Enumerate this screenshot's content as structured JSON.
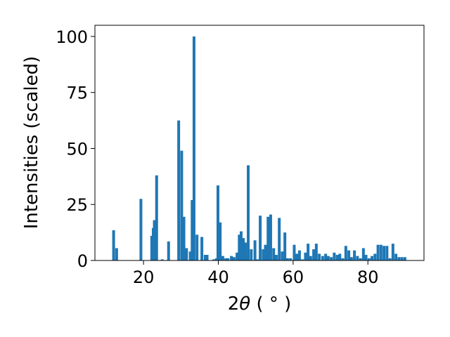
{
  "chart_data": {
    "type": "bar",
    "xlabel_main": "2",
    "xlabel_symbol": "θ",
    "xlabel_unit": " ( ° )",
    "ylabel": "Intensities (scaled)",
    "xlim": [
      7,
      95
    ],
    "ylim": [
      0,
      105
    ],
    "x_ticks": [
      20,
      40,
      60,
      80
    ],
    "y_ticks": [
      0,
      25,
      50,
      75,
      100
    ],
    "bar_width": 0.75,
    "color": "#1f77b4",
    "grid": false,
    "x": [
      12.0,
      12.8,
      19.3,
      22.2,
      22.6,
      22.9,
      23.5,
      25.0,
      26.7,
      29.4,
      30.2,
      30.8,
      31.5,
      32.5,
      33.0,
      33.5,
      34.3,
      35.6,
      36.5,
      37.0,
      38.8,
      39.5,
      39.9,
      40.5,
      41.2,
      42.0,
      42.6,
      43.5,
      44.2,
      45.0,
      45.6,
      46.1,
      46.7,
      47.3,
      48.0,
      48.8,
      49.8,
      50.5,
      51.2,
      52.0,
      52.6,
      53.3,
      54.0,
      54.8,
      55.5,
      56.3,
      57.1,
      57.8,
      58.5,
      59.3,
      60.3,
      61.0,
      61.7,
      62.5,
      63.3,
      64.0,
      64.7,
      65.5,
      66.2,
      67.0,
      67.9,
      68.7,
      69.4,
      70.2,
      71.0,
      71.8,
      72.5,
      73.3,
      74.1,
      74.9,
      75.6,
      76.4,
      77.2,
      78.0,
      78.8,
      79.5,
      80.3,
      81.1,
      81.9,
      82.7,
      83.5,
      84.3,
      85.1,
      85.9,
      86.7,
      87.5,
      88.3,
      89.1,
      89.9
    ],
    "values": [
      13.5,
      5.5,
      27.5,
      11.0,
      14.5,
      18.0,
      38.0,
      0.5,
      8.5,
      62.5,
      49.0,
      19.5,
      5.5,
      4.0,
      27.0,
      100.0,
      11.5,
      10.5,
      2.5,
      2.5,
      0.5,
      1.0,
      33.5,
      17.0,
      2.0,
      1.0,
      1.0,
      2.0,
      1.5,
      3.5,
      11.5,
      13.0,
      10.0,
      8.0,
      42.5,
      5.0,
      9.0,
      0.5,
      20.0,
      5.0,
      7.0,
      19.5,
      20.5,
      5.5,
      2.5,
      19.0,
      4.0,
      12.5,
      1.0,
      1.0,
      7.0,
      3.0,
      4.5,
      0.5,
      3.5,
      7.5,
      2.0,
      5.0,
      7.5,
      3.0,
      2.0,
      3.0,
      2.0,
      1.5,
      3.5,
      2.5,
      3.0,
      1.0,
      6.5,
      4.5,
      1.5,
      4.5,
      2.0,
      1.0,
      5.5,
      2.5,
      1.0,
      2.0,
      3.0,
      7.0,
      7.0,
      6.5,
      6.5,
      1.0,
      7.5,
      3.0,
      1.5,
      1.5,
      1.5
    ]
  }
}
